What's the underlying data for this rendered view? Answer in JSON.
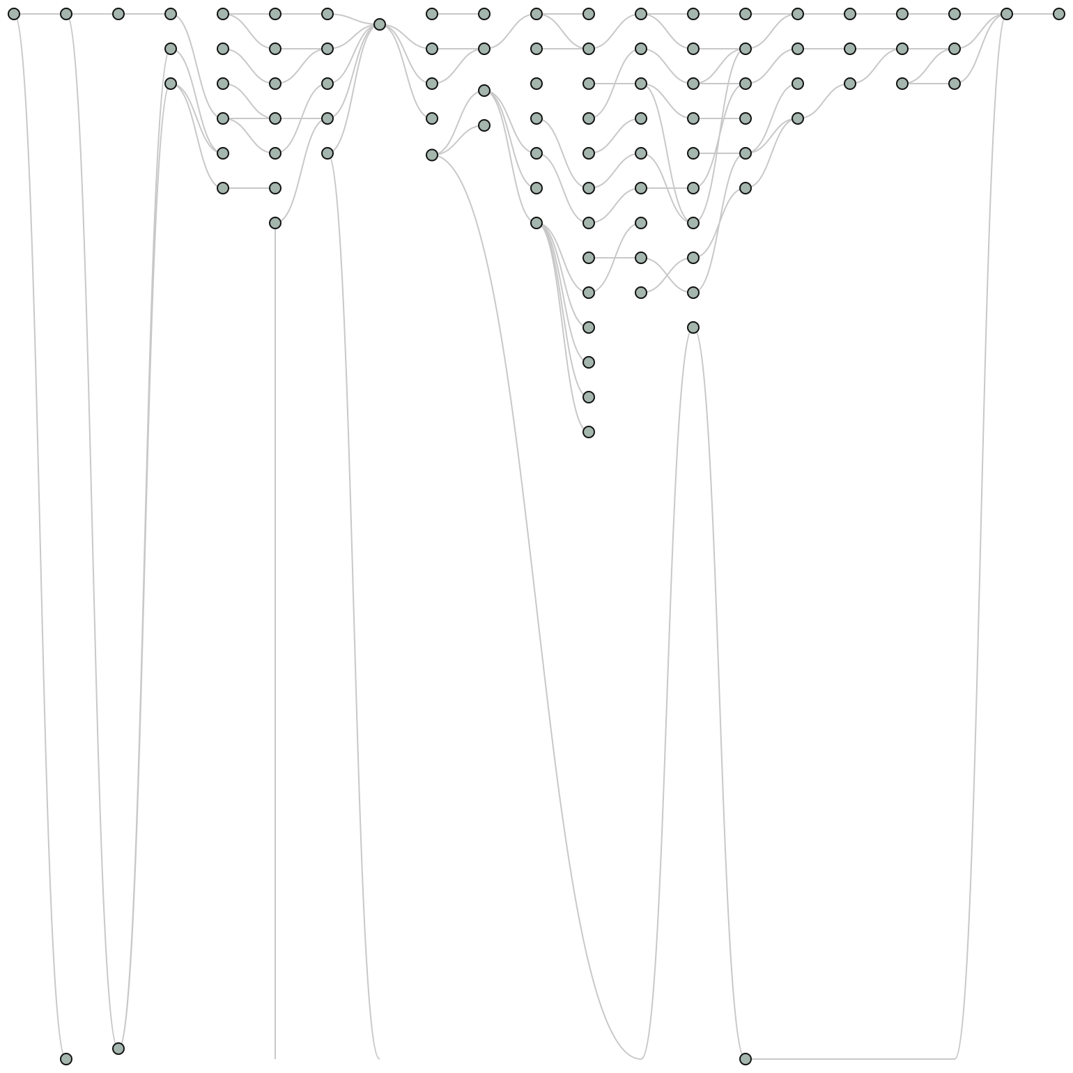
{
  "colors": {
    "background": "#ffffff",
    "node_fill": "#a4b6ae",
    "node_stroke": "#111111",
    "edge": "#c8c8c8"
  },
  "graph": {
    "columns": 21,
    "rows": [
      [
        0,
        0,
        0,
        0,
        0,
        0,
        0,
        0.3,
        0,
        0,
        0,
        0,
        0,
        0,
        0,
        0,
        0,
        0,
        0,
        0,
        0
      ],
      [
        29.7,
        29.4,
        1,
        1,
        1,
        1,
        1,
        1,
        1,
        1,
        1,
        1,
        1,
        1,
        1,
        1,
        1
      ],
      [
        1,
        2,
        2,
        2,
        2,
        2,
        2,
        2.2,
        2,
        2,
        2,
        2,
        2,
        2,
        2,
        2
      ],
      [
        3,
        3,
        3,
        3,
        3,
        3,
        3,
        3,
        3,
        3
      ],
      [
        4,
        4,
        4,
        4,
        4.05,
        4,
        4,
        4,
        4,
        4
      ],
      [
        5,
        5,
        5,
        5,
        5,
        5,
        5
      ],
      [
        6,
        6,
        6,
        6,
        6
      ],
      [
        7,
        7,
        7
      ],
      [
        8,
        8,
        8
      ],
      [
        9,
        9
      ],
      [
        10
      ],
      [
        11
      ],
      [
        12
      ],
      [
        29.7
      ]
    ]
  },
  "nodes": [
    {
      "c": 0,
      "r": 0
    },
    {
      "c": 1,
      "r": 0
    },
    {
      "c": 2,
      "r": 0
    },
    {
      "c": 3,
      "r": 0
    },
    {
      "c": 4,
      "r": 0
    },
    {
      "c": 5,
      "r": 0
    },
    {
      "c": 6,
      "r": 0
    },
    {
      "c": 7,
      "r": 0.3
    },
    {
      "c": 8,
      "r": 0
    },
    {
      "c": 9,
      "r": 0
    },
    {
      "c": 10,
      "r": 0
    },
    {
      "c": 11,
      "r": 0
    },
    {
      "c": 12,
      "r": 0
    },
    {
      "c": 13,
      "r": 0
    },
    {
      "c": 14,
      "r": 0
    },
    {
      "c": 15,
      "r": 0
    },
    {
      "c": 16,
      "r": 0
    },
    {
      "c": 17,
      "r": 0
    },
    {
      "c": 18,
      "r": 0
    },
    {
      "c": 19,
      "r": 0
    },
    {
      "c": 20,
      "r": 0
    },
    {
      "c": 3,
      "r": 1
    },
    {
      "c": 4,
      "r": 1
    },
    {
      "c": 5,
      "r": 1
    },
    {
      "c": 6,
      "r": 1
    },
    {
      "c": 8,
      "r": 1
    },
    {
      "c": 9,
      "r": 1
    },
    {
      "c": 10,
      "r": 1
    },
    {
      "c": 11,
      "r": 1
    },
    {
      "c": 12,
      "r": 1
    },
    {
      "c": 13,
      "r": 1
    },
    {
      "c": 14,
      "r": 1
    },
    {
      "c": 15,
      "r": 1
    },
    {
      "c": 16,
      "r": 1
    },
    {
      "c": 17,
      "r": 1
    },
    {
      "c": 18,
      "r": 1
    },
    {
      "c": 3,
      "r": 2
    },
    {
      "c": 4,
      "r": 2
    },
    {
      "c": 5,
      "r": 2
    },
    {
      "c": 6,
      "r": 2
    },
    {
      "c": 8,
      "r": 2
    },
    {
      "c": 9,
      "r": 2.2
    },
    {
      "c": 10,
      "r": 2
    },
    {
      "c": 11,
      "r": 2
    },
    {
      "c": 12,
      "r": 2
    },
    {
      "c": 13,
      "r": 2
    },
    {
      "c": 14,
      "r": 2
    },
    {
      "c": 15,
      "r": 2
    },
    {
      "c": 16,
      "r": 2
    },
    {
      "c": 17,
      "r": 2
    },
    {
      "c": 18,
      "r": 2
    },
    {
      "c": 4,
      "r": 3
    },
    {
      "c": 5,
      "r": 3
    },
    {
      "c": 6,
      "r": 3
    },
    {
      "c": 8,
      "r": 3
    },
    {
      "c": 9,
      "r": 3.2
    },
    {
      "c": 10,
      "r": 3
    },
    {
      "c": 11,
      "r": 3
    },
    {
      "c": 12,
      "r": 3
    },
    {
      "c": 13,
      "r": 3
    },
    {
      "c": 14,
      "r": 3
    },
    {
      "c": 15,
      "r": 3
    },
    {
      "c": 4,
      "r": 4
    },
    {
      "c": 5,
      "r": 4
    },
    {
      "c": 6,
      "r": 4
    },
    {
      "c": 8,
      "r": 4.05
    },
    {
      "c": 10,
      "r": 4
    },
    {
      "c": 11,
      "r": 4
    },
    {
      "c": 12,
      "r": 4
    },
    {
      "c": 13,
      "r": 4
    },
    {
      "c": 14,
      "r": 4
    },
    {
      "c": 4,
      "r": 5
    },
    {
      "c": 5,
      "r": 5
    },
    {
      "c": 10,
      "r": 5
    },
    {
      "c": 11,
      "r": 5
    },
    {
      "c": 12,
      "r": 5
    },
    {
      "c": 13,
      "r": 5
    },
    {
      "c": 14,
      "r": 5
    },
    {
      "c": 5,
      "r": 6
    },
    {
      "c": 10,
      "r": 6
    },
    {
      "c": 11,
      "r": 6
    },
    {
      "c": 12,
      "r": 6
    },
    {
      "c": 13,
      "r": 6
    },
    {
      "c": 11,
      "r": 7
    },
    {
      "c": 12,
      "r": 7
    },
    {
      "c": 13,
      "r": 7
    },
    {
      "c": 11,
      "r": 8
    },
    {
      "c": 12,
      "r": 8
    },
    {
      "c": 13,
      "r": 8
    },
    {
      "c": 11,
      "r": 9
    },
    {
      "c": 13,
      "r": 9
    },
    {
      "c": 11,
      "r": 10
    },
    {
      "c": 11,
      "r": 11
    },
    {
      "c": 11,
      "r": 12
    },
    {
      "c": 1,
      "r": 30
    },
    {
      "c": 2,
      "r": 29.7
    },
    {
      "c": 14,
      "r": 30
    }
  ],
  "edges": [
    [
      0,
      0,
      1,
      0
    ],
    [
      1,
      0,
      2,
      0
    ],
    [
      2,
      0,
      3,
      0
    ],
    [
      4,
      0,
      5,
      0
    ],
    [
      8,
      0,
      9,
      0
    ],
    [
      10,
      0,
      11,
      0
    ],
    [
      12,
      0,
      13,
      0
    ],
    [
      13,
      0,
      14,
      0
    ],
    [
      14,
      0,
      15,
      0
    ],
    [
      15,
      0,
      16,
      0
    ],
    [
      16,
      0,
      17,
      0
    ],
    [
      17,
      0,
      18,
      0
    ],
    [
      18,
      0,
      19,
      0
    ],
    [
      19,
      0,
      20,
      0
    ],
    [
      3,
      0,
      4,
      3
    ],
    [
      4,
      0,
      5,
      1
    ],
    [
      5,
      0,
      6,
      0
    ],
    [
      5,
      1,
      6,
      1
    ],
    [
      6,
      0,
      7,
      0.3
    ],
    [
      7,
      0.3,
      8,
      1
    ],
    [
      7,
      0.3,
      8,
      2
    ],
    [
      7,
      0.3,
      8,
      3
    ],
    [
      8,
      1,
      9,
      1
    ],
    [
      9,
      1,
      10,
      0
    ],
    [
      10,
      0,
      11,
      1
    ],
    [
      10,
      1,
      11,
      1
    ],
    [
      11,
      1,
      12,
      0
    ],
    [
      12,
      0,
      13,
      1
    ],
    [
      13,
      1,
      14,
      1
    ],
    [
      14,
      1,
      15,
      0
    ],
    [
      15,
      1,
      16,
      1
    ],
    [
      16,
      1,
      17,
      1
    ],
    [
      17,
      1,
      18,
      1
    ],
    [
      17,
      2,
      18,
      2
    ],
    [
      17,
      2,
      18,
      1
    ],
    [
      18,
      1,
      19,
      0
    ],
    [
      18,
      2,
      19,
      0
    ],
    [
      3,
      1,
      4,
      4
    ],
    [
      3,
      2,
      4,
      4
    ],
    [
      3,
      2,
      4,
      5
    ],
    [
      4,
      1,
      5,
      2
    ],
    [
      4,
      2,
      5,
      3
    ],
    [
      4,
      3,
      5,
      3
    ],
    [
      4,
      3,
      5,
      4
    ],
    [
      4,
      5,
      5,
      5
    ],
    [
      5,
      2,
      6,
      1
    ],
    [
      5,
      3,
      6,
      3
    ],
    [
      5,
      4,
      6,
      2
    ],
    [
      5,
      6,
      6,
      3
    ],
    [
      6,
      1,
      7,
      0.3
    ],
    [
      6,
      2,
      7,
      0.3
    ],
    [
      6,
      3,
      7,
      0.3
    ],
    [
      6,
      4,
      7,
      0.3
    ],
    [
      8,
      2,
      9,
      1
    ],
    [
      8,
      4.05,
      9,
      2.2
    ],
    [
      8,
      4.05,
      9,
      3.2
    ],
    [
      9,
      2.2,
      10,
      4
    ],
    [
      9,
      2.2,
      10,
      5
    ],
    [
      9,
      2.2,
      10,
      6
    ],
    [
      10,
      3,
      11,
      5
    ],
    [
      10,
      4,
      11,
      6
    ],
    [
      10,
      6,
      11,
      8
    ],
    [
      10,
      6,
      11,
      9
    ],
    [
      10,
      6,
      11,
      10
    ],
    [
      10,
      6,
      11,
      11
    ],
    [
      10,
      6,
      11,
      12
    ],
    [
      11,
      2,
      12,
      2
    ],
    [
      11,
      3,
      12,
      1
    ],
    [
      11,
      4,
      12,
      3
    ],
    [
      11,
      5,
      12,
      4
    ],
    [
      11,
      6,
      12,
      5
    ],
    [
      11,
      7,
      12,
      7
    ],
    [
      11,
      8,
      12,
      6
    ],
    [
      12,
      1,
      13,
      2
    ],
    [
      12,
      2,
      13,
      3
    ],
    [
      12,
      2,
      13,
      6
    ],
    [
      12,
      4,
      13,
      6
    ],
    [
      12,
      5,
      13,
      5
    ],
    [
      12,
      7,
      13,
      8
    ],
    [
      12,
      8,
      13,
      7
    ],
    [
      13,
      2,
      14,
      1
    ],
    [
      13,
      2,
      14,
      2
    ],
    [
      13,
      3,
      14,
      3
    ],
    [
      13,
      4,
      14,
      4
    ],
    [
      13,
      5,
      14,
      2
    ],
    [
      13,
      6,
      14,
      1
    ],
    [
      13,
      7,
      14,
      5
    ],
    [
      13,
      8,
      14,
      4
    ],
    [
      14,
      2,
      15,
      1
    ],
    [
      14,
      4,
      15,
      2
    ],
    [
      14,
      4,
      15,
      3
    ],
    [
      14,
      5,
      15,
      3
    ],
    [
      15,
      3,
      16,
      2
    ],
    [
      16,
      2,
      17,
      1
    ]
  ],
  "long_edges": [
    [
      0,
      0,
      1,
      30
    ],
    [
      1,
      0,
      2,
      29.7
    ],
    [
      2,
      29.7,
      3,
      1
    ],
    [
      2,
      29.7,
      3,
      2
    ],
    [
      6,
      4,
      7,
      30.0
    ],
    [
      5,
      6,
      5,
      30.0
    ],
    [
      8,
      4.05,
      12,
      30.0
    ],
    [
      12,
      30.0,
      13,
      9
    ],
    [
      13,
      9,
      14,
      30
    ],
    [
      14,
      30,
      18,
      30.0
    ],
    [
      18,
      30.0,
      19,
      0
    ]
  ]
}
